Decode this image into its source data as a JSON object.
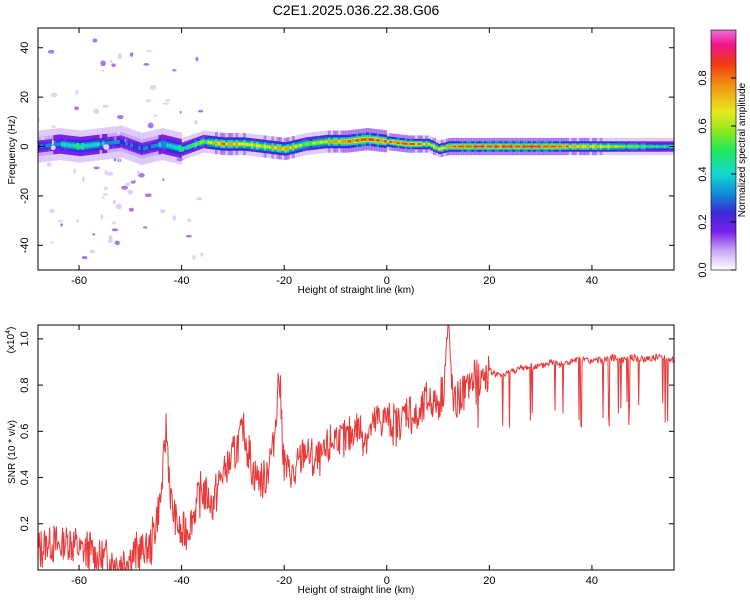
{
  "page_title": "C2E1.2025.036.22.38.G06",
  "colors": {
    "snr_line": "#e83a3a",
    "axis": "#000000",
    "colormap": [
      "#ffffff",
      "#c9a8f5",
      "#7a1fe8",
      "#3a2bd6",
      "#0f8fd8",
      "#12d9d2",
      "#22e85a",
      "#8fe81c",
      "#e8e81c",
      "#f09a12",
      "#f03a12",
      "#f0148c",
      "#f070d8"
    ]
  },
  "chart_data": [
    {
      "type": "heatmap",
      "xlabel": "Height of straight line (km)",
      "ylabel": "Frequency (Hz)",
      "xlim": [
        -68,
        56
      ],
      "ylim": [
        -50,
        48
      ],
      "xticks": [
        -60,
        -40,
        -20,
        0,
        20,
        40
      ],
      "yticks": [
        -40,
        -20,
        0,
        20,
        40
      ],
      "grid": false,
      "ridge": {
        "x": [
          -68,
          -64,
          -60,
          -56,
          -52,
          -48,
          -44,
          -40,
          -36,
          -32,
          -28,
          -24,
          -20,
          -16,
          -12,
          -8,
          -4,
          0,
          4,
          8,
          10,
          12,
          16,
          20,
          24,
          30,
          36,
          42,
          48,
          52,
          56
        ],
        "y": [
          0,
          1,
          0,
          1,
          2,
          -1,
          1,
          -1,
          2,
          1,
          1,
          0,
          -1,
          1,
          2,
          2,
          3,
          2,
          1,
          1,
          -1,
          0,
          0,
          0,
          0,
          0,
          0,
          0,
          0,
          0,
          0
        ],
        "amp": [
          0.3,
          0.4,
          0.5,
          0.4,
          0.3,
          0.3,
          0.4,
          0.5,
          0.6,
          0.8,
          0.7,
          0.7,
          0.8,
          0.6,
          0.7,
          0.8,
          0.9,
          0.8,
          0.9,
          0.7,
          0.7,
          0.8,
          0.9,
          0.9,
          0.9,
          0.9,
          0.8,
          0.7,
          0.6,
          0.5,
          0.5
        ]
      },
      "colorbar": {
        "label": "Normalized spectral amplitude",
        "range": [
          0,
          1
        ],
        "ticks": [
          0.0,
          0.2,
          0.4,
          0.6,
          0.8
        ]
      }
    },
    {
      "type": "line",
      "xlabel": "Height of straight line (km)",
      "ylabel": "SNR (10 * v/v)",
      "y_multiplier_label": "(x10",
      "y_multiplier_exponent": "4",
      "y_multiplier_close": ")",
      "xlim": [
        -68,
        56
      ],
      "ylim": [
        0.0,
        1.06
      ],
      "xticks": [
        -60,
        -40,
        -20,
        0,
        20,
        40
      ],
      "yticks": [
        0.2,
        0.4,
        0.6,
        0.8,
        1.0
      ],
      "grid": false,
      "series": [
        {
          "x": [
            -68,
            -66,
            -64,
            -62,
            -60,
            -58,
            -56,
            -54,
            -52,
            -50,
            -48,
            -46,
            -44,
            -43,
            -42,
            -40,
            -38,
            -36,
            -34,
            -32,
            -30,
            -28,
            -26,
            -24,
            -22,
            -21,
            -20,
            -18,
            -16,
            -14,
            -12,
            -10,
            -8,
            -6,
            -4,
            -2,
            0,
            2,
            4,
            6,
            8,
            10,
            11,
            12,
            13,
            14,
            16,
            18,
            20,
            22,
            24,
            26,
            28,
            30,
            32,
            34,
            36,
            38,
            40,
            42,
            44,
            46,
            48,
            50,
            52,
            54,
            56
          ],
          "y": [
            0.08,
            0.12,
            0.1,
            0.13,
            0.09,
            0.08,
            0.05,
            0.04,
            0.03,
            0.06,
            0.08,
            0.1,
            0.32,
            0.62,
            0.28,
            0.14,
            0.22,
            0.35,
            0.28,
            0.42,
            0.48,
            0.62,
            0.42,
            0.38,
            0.55,
            0.86,
            0.45,
            0.4,
            0.52,
            0.46,
            0.5,
            0.58,
            0.55,
            0.62,
            0.58,
            0.64,
            0.66,
            0.62,
            0.7,
            0.64,
            0.74,
            0.72,
            0.78,
            1.06,
            0.7,
            0.74,
            0.8,
            0.82,
            0.86,
            0.84,
            0.86,
            0.87,
            0.88,
            0.88,
            0.9,
            0.89,
            0.9,
            0.91,
            0.9,
            0.91,
            0.92,
            0.91,
            0.92,
            0.91,
            0.92,
            0.92,
            0.91
          ]
        }
      ]
    }
  ]
}
